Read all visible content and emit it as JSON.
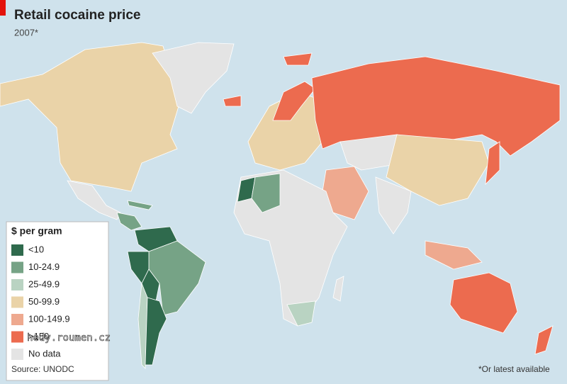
{
  "header": {
    "title": "Retail cocaine price",
    "subtitle": "2007*"
  },
  "legend": {
    "title": "$ per gram",
    "items": [
      {
        "label": "<10",
        "color": "#2f6a4d"
      },
      {
        "label": "10-24.9",
        "color": "#76a386"
      },
      {
        "label": "25-49.9",
        "color": "#b9d3c2"
      },
      {
        "label": "50-99.9",
        "color": "#ead3a8"
      },
      {
        "label": "100-149.9",
        "color": "#eea98f"
      },
      {
        "label": ">150",
        "color": "#ec6b4f"
      },
      {
        "label": "No data",
        "color": "#e4e4e4"
      }
    ]
  },
  "source": "Source: UNODC",
  "footnote": "*Or latest available",
  "watermark": "hedy.roumen.cz"
}
